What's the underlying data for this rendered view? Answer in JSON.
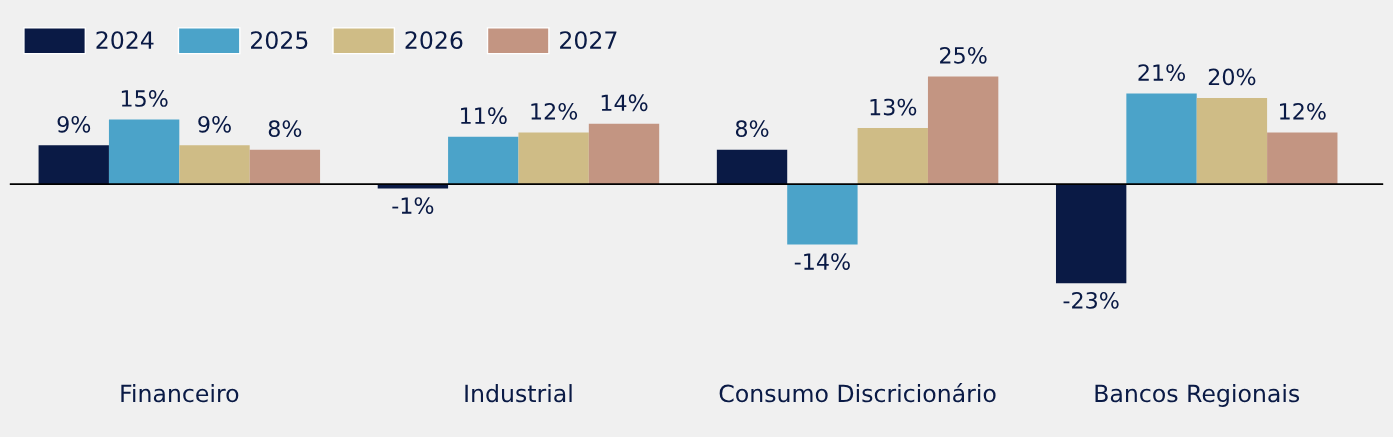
{
  "chart_data": {
    "type": "bar",
    "categories": [
      "Financeiro",
      "Industrial",
      "Consumo Discricionário",
      "Bancos Regionais"
    ],
    "series": [
      {
        "name": "2024",
        "color": "#0a1a45",
        "values": [
          9,
          -1,
          8,
          -23
        ],
        "value_labels": [
          "9%",
          "-1%",
          "8%",
          "-23%"
        ]
      },
      {
        "name": "2025",
        "color": "#4ba3c9",
        "values": [
          15,
          11,
          -14,
          21
        ],
        "value_labels": [
          "15%",
          "11%",
          "-14%",
          "21%"
        ]
      },
      {
        "name": "2026",
        "color": "#cfbc86",
        "values": [
          9,
          12,
          13,
          20
        ],
        "value_labels": [
          "9%",
          "12%",
          "13%",
          "20%"
        ]
      },
      {
        "name": "2027",
        "color": "#c39582",
        "values": [
          8,
          14,
          25,
          12
        ],
        "value_labels": [
          "8%",
          "14%",
          "25%",
          "12%"
        ]
      }
    ],
    "legend": "top left",
    "grid": false
  }
}
